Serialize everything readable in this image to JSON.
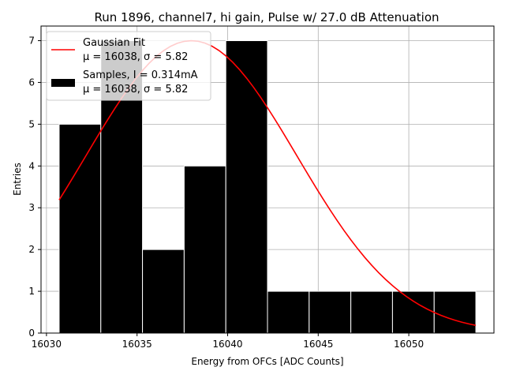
{
  "chart_data": {
    "type": "bar",
    "title": "Run 1896, channel7, hi gain, Pulse w/ 27.0 dB Attenuation",
    "xlabel": "Energy from OFCs [ADC Counts]",
    "ylabel": "Entries",
    "xlim": [
      16029.7,
      16054.7
    ],
    "ylim": [
      0,
      7.35
    ],
    "xticks": [
      16030,
      16035,
      16040,
      16045,
      16050
    ],
    "yticks": [
      0,
      1,
      2,
      3,
      4,
      5,
      6,
      7
    ],
    "grid": true,
    "legend_position": "top-left",
    "histogram": {
      "name": "Samples, I = 0.314mA",
      "stats_label": "μ = 16038, σ = 5.82",
      "color": "#000000",
      "edge_color": "#ffffff",
      "bin_edges": [
        16030.7,
        16033.0,
        16035.3,
        16037.6,
        16039.9,
        16042.2,
        16044.5,
        16046.8,
        16049.1,
        16051.4,
        16053.7
      ],
      "counts": [
        5,
        7,
        2,
        4,
        7,
        1,
        1,
        1,
        1,
        1
      ]
    },
    "fit": {
      "name": "Gaussian Fit",
      "stats_label": "μ = 16038, σ = 5.82",
      "color": "#ff0000",
      "mu": 16038,
      "sigma": 5.82,
      "amplitude": 7.0,
      "x_range": [
        16030.7,
        16053.7
      ]
    }
  }
}
